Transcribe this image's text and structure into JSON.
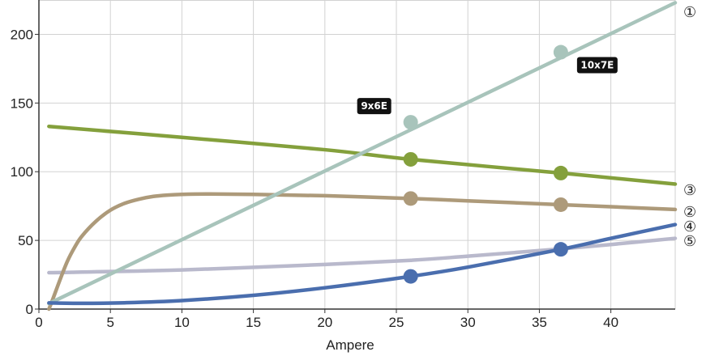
{
  "chart_data": {
    "type": "line",
    "title": "",
    "xlabel": "Ampere",
    "ylabel": "",
    "xlim": [
      0,
      44.5
    ],
    "ylim": [
      0,
      225
    ],
    "x_ticks": [
      0,
      5,
      10,
      15,
      20,
      25,
      30,
      35,
      40
    ],
    "y_ticks": [
      0,
      50,
      100,
      150,
      200
    ],
    "grid": true,
    "series": [
      {
        "name": "①",
        "color": "#a8c4bb",
        "points": [
          [
            0.7,
            4
          ],
          [
            44.5,
            223
          ]
        ],
        "markers": [
          [
            26,
            136
          ],
          [
            36.5,
            187
          ]
        ]
      },
      {
        "name": "②",
        "color": "#ad9a7a",
        "points": [
          [
            0.7,
            0
          ],
          [
            1,
            8
          ],
          [
            1.5,
            22
          ],
          [
            2,
            35
          ],
          [
            2.5,
            45
          ],
          [
            3,
            53
          ],
          [
            4,
            64
          ],
          [
            5,
            72
          ],
          [
            6,
            77
          ],
          [
            7,
            80
          ],
          [
            8,
            82
          ],
          [
            9,
            83
          ],
          [
            10,
            83.5
          ],
          [
            12,
            83.8
          ],
          [
            15,
            83.5
          ],
          [
            20,
            82.5
          ],
          [
            26,
            80.5
          ],
          [
            30,
            78.8
          ],
          [
            36.5,
            76
          ],
          [
            40,
            74.5
          ],
          [
            44.5,
            72.5
          ]
        ],
        "markers": [
          [
            26,
            80.5
          ],
          [
            36.5,
            76
          ]
        ]
      },
      {
        "name": "③",
        "color": "#84a03c",
        "points": [
          [
            0.7,
            133
          ],
          [
            10,
            125
          ],
          [
            20,
            116
          ],
          [
            26,
            109
          ],
          [
            36.5,
            99
          ],
          [
            44.5,
            91
          ]
        ],
        "markers": [
          [
            26,
            109
          ],
          [
            36.5,
            99
          ]
        ]
      },
      {
        "name": "④",
        "color": "#4a6eae",
        "points": [
          [
            0.7,
            4.5
          ],
          [
            3,
            4.2
          ],
          [
            6,
            4.6
          ],
          [
            10,
            6.2
          ],
          [
            15,
            10
          ],
          [
            20,
            15.5
          ],
          [
            26,
            23.8
          ],
          [
            30,
            30.5
          ],
          [
            36.5,
            43.5
          ],
          [
            40,
            51.5
          ],
          [
            44.5,
            61.5
          ]
        ],
        "markers": [
          [
            26,
            23.8
          ],
          [
            36.5,
            43.5
          ]
        ]
      },
      {
        "name": "⑤",
        "color": "#b9b9cc",
        "points": [
          [
            0.7,
            26.5
          ],
          [
            10,
            28.5
          ],
          [
            20,
            32.5
          ],
          [
            26,
            35.5
          ],
          [
            30,
            38.5
          ],
          [
            36.5,
            43.8
          ],
          [
            40,
            47
          ],
          [
            44.5,
            51.5
          ]
        ],
        "markers": []
      }
    ],
    "annotations": [
      {
        "text": "9x6E",
        "x": 26,
        "y": 136
      },
      {
        "text": "10x7E",
        "x": 36.5,
        "y": 187
      }
    ]
  }
}
